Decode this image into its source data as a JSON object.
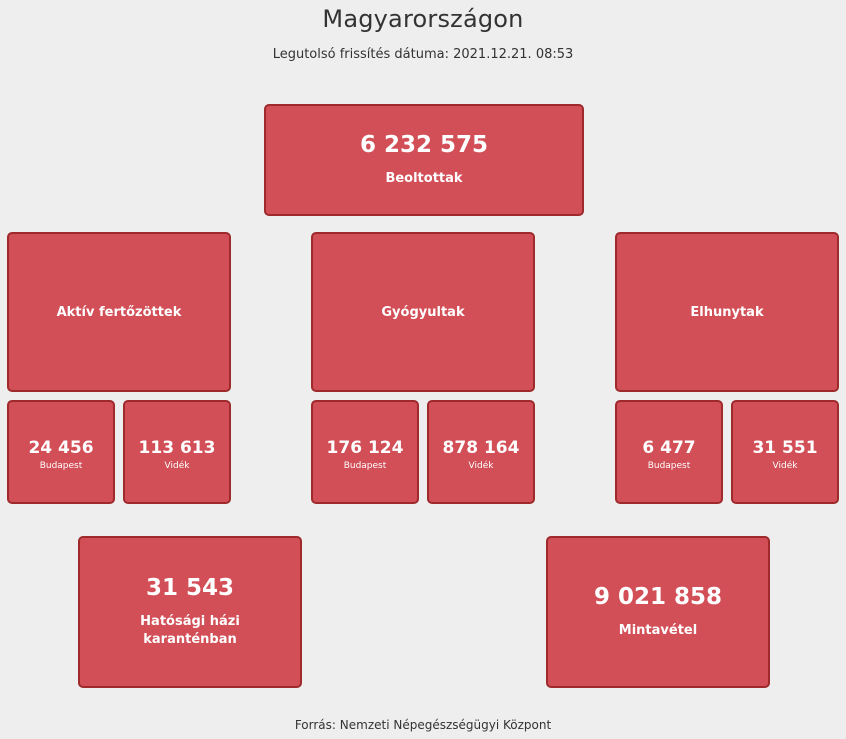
{
  "header": {
    "title": "Magyarországon",
    "updated": "Legutolsó frissítés dátuma: 2021.12.21. 08:53"
  },
  "vaccinated": {
    "value": "6 232 575",
    "label": "Beoltottak"
  },
  "categories": [
    {
      "label": "Aktív fertőzöttek",
      "budapest": {
        "value": "24 456",
        "label": "Budapest"
      },
      "videk": {
        "value": "113 613",
        "label": "Vidék"
      }
    },
    {
      "label": "Gyógyultak",
      "budapest": {
        "value": "176 124",
        "label": "Budapest"
      },
      "videk": {
        "value": "878 164",
        "label": "Vidék"
      }
    },
    {
      "label": "Elhunytak",
      "budapest": {
        "value": "6 477",
        "label": "Budapest"
      },
      "videk": {
        "value": "31 551",
        "label": "Vidék"
      }
    }
  ],
  "quarantine": {
    "value": "31 543",
    "label": "Hatósági házi karanténban"
  },
  "samples": {
    "value": "9 021 858",
    "label": "Mintavétel"
  },
  "footer": {
    "source": "Forrás: Nemzeti Népegészségügyi Központ"
  },
  "colors": {
    "card": "#d24f57",
    "card_border": "#9e2a2b",
    "background": "#eeeeee"
  }
}
